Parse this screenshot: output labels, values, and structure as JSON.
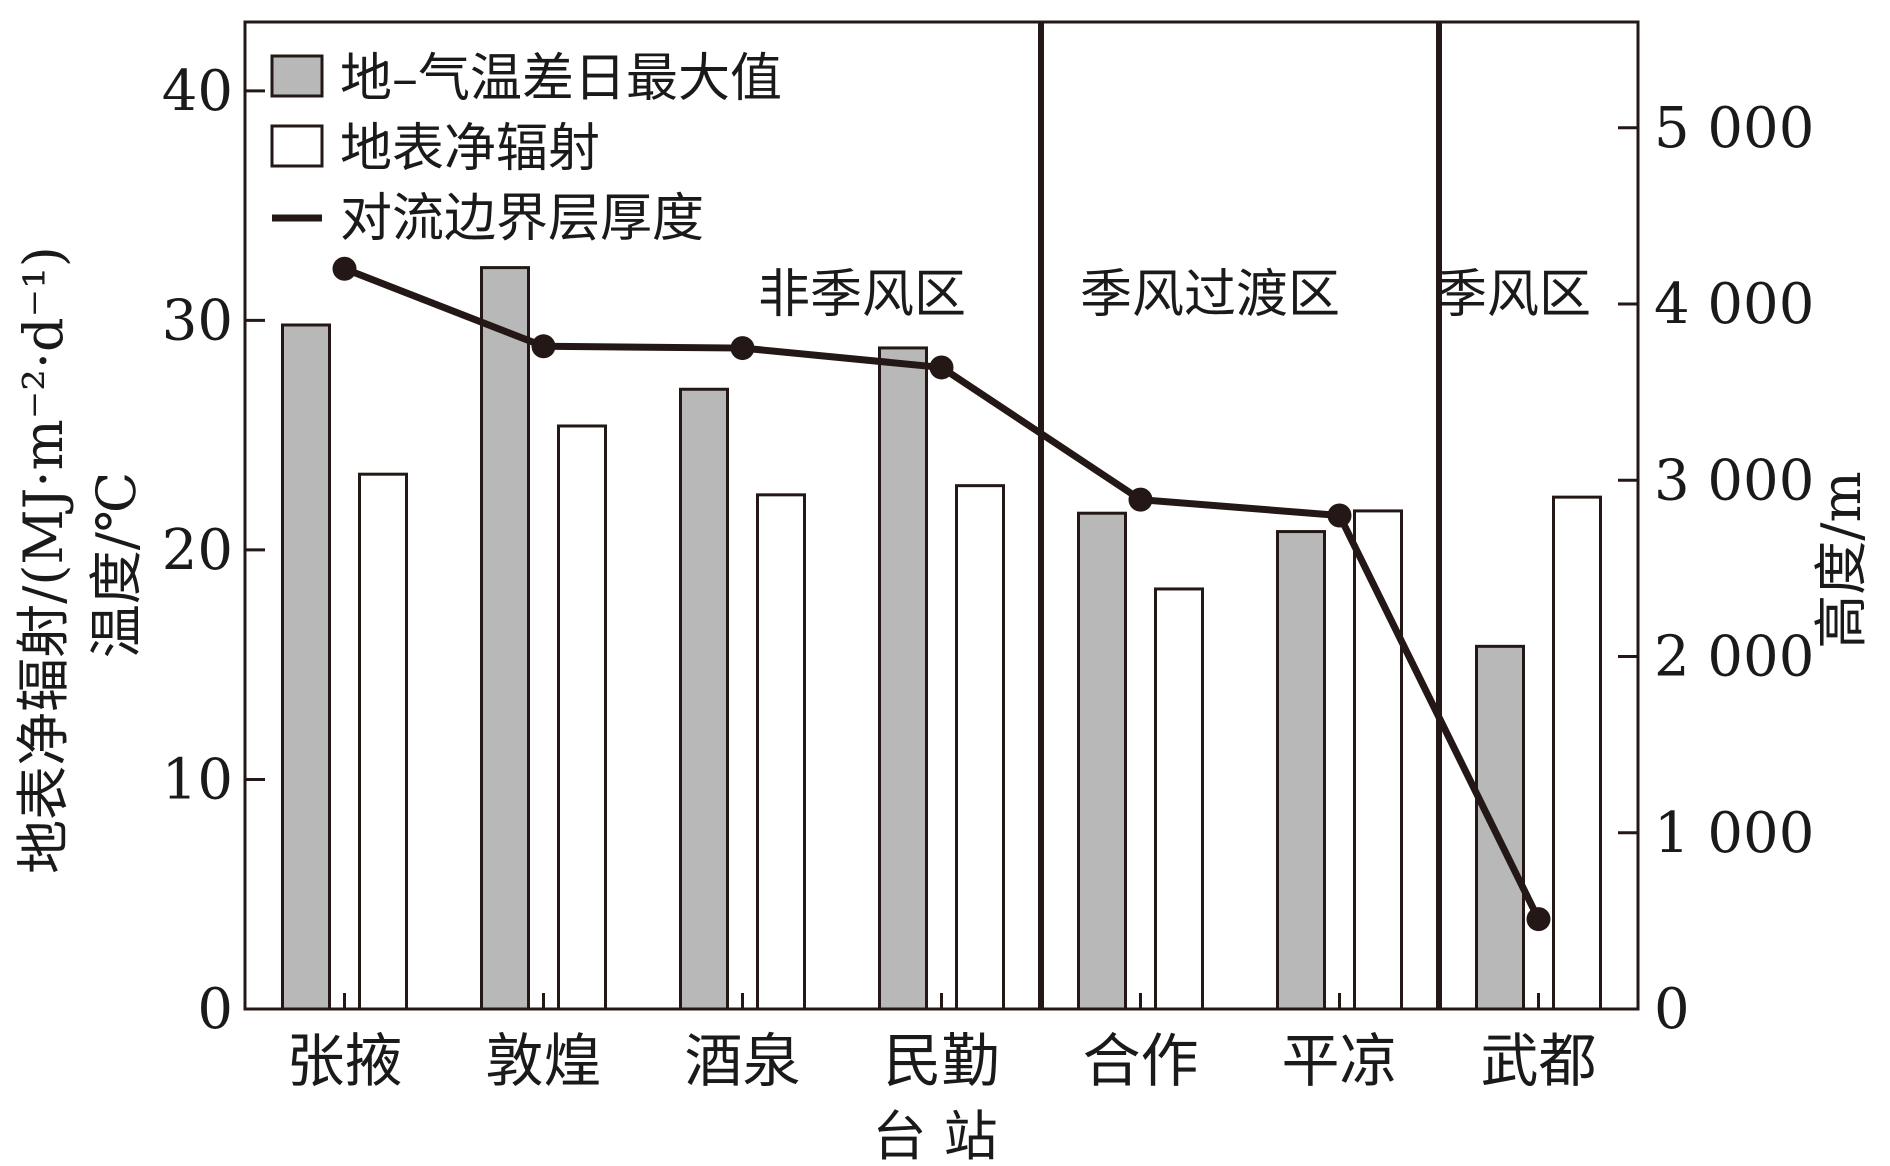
{
  "chart_data": {
    "type": "bar",
    "categories": [
      "张掖",
      "敦煌",
      "酒泉",
      "民勤",
      "合作",
      "平凉",
      "武都"
    ],
    "xlabel": "台 站",
    "ylabel_left": [
      "地表净辐射/(MJ·m⁻²·d⁻¹)",
      "温度/℃"
    ],
    "ylabel_right": "高度/m",
    "left_axis": {
      "ylim": [
        0,
        43
      ],
      "ticks": [
        0,
        10,
        20,
        30,
        40
      ],
      "tick_labels": [
        "0",
        "10",
        "20",
        "30",
        "40"
      ]
    },
    "right_axis": {
      "ylim": [
        0,
        5600
      ],
      "ticks": [
        0,
        1000,
        2000,
        3000,
        4000,
        5000
      ],
      "tick_labels": [
        "0",
        "1 000",
        "2 000",
        "3 000",
        "4 000",
        "5 000"
      ]
    },
    "series": [
      {
        "name": "地–气温差日最大值",
        "type": "bar",
        "axis": "left",
        "color": "#b8b8b8",
        "values": [
          29.8,
          32.3,
          27.0,
          28.8,
          21.6,
          20.8,
          15.8
        ]
      },
      {
        "name": "地表净辐射",
        "type": "bar",
        "axis": "left",
        "color": "#ffffff",
        "values": [
          23.3,
          25.4,
          22.4,
          22.8,
          18.3,
          21.7,
          22.3
        ]
      },
      {
        "name": "对流边界层厚度",
        "type": "line",
        "axis": "right",
        "color": "#231815",
        "values": [
          4200,
          3760,
          3750,
          3640,
          2890,
          2800,
          510
        ]
      }
    ],
    "regions": [
      {
        "label": "非季风区",
        "from": 0,
        "to": 3
      },
      {
        "label": "季风过渡区",
        "from": 4,
        "to": 5
      },
      {
        "label": "季风区",
        "from": 6,
        "to": 6
      }
    ],
    "legend_position": "top-left",
    "grid": false
  }
}
